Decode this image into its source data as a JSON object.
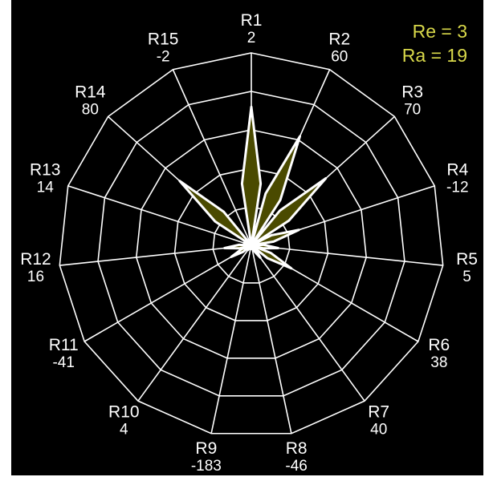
{
  "chart_data": {
    "type": "radar",
    "title": "",
    "categories": [
      "R1",
      "R2",
      "R3",
      "R4",
      "R5",
      "R6",
      "R7",
      "R8",
      "R9",
      "R10",
      "R11",
      "R12",
      "R13",
      "R14",
      "R15"
    ],
    "values": [
      2,
      60,
      70,
      -12,
      5,
      38,
      40,
      -46,
      -183,
      4,
      -41,
      16,
      14,
      80,
      -2
    ],
    "series": [
      {
        "name": "",
        "values": [
          3.6,
          3.1,
          2.6,
          1.3,
          0.7,
          1.2,
          0.4,
          0.1,
          0.1,
          0.15,
          0.6,
          0.7,
          0.2,
          2.5,
          0.1
        ]
      }
    ],
    "rlim": [
      0,
      4.6
    ],
    "grid_rings": 5,
    "grid": true,
    "colors": {
      "background": "#000000",
      "fill": "#4a4a00",
      "line": "#ffffff",
      "annotation": "#d8d84a"
    },
    "annotations": [
      {
        "text": "Re = 3"
      },
      {
        "text": "Ra = 19"
      }
    ]
  }
}
